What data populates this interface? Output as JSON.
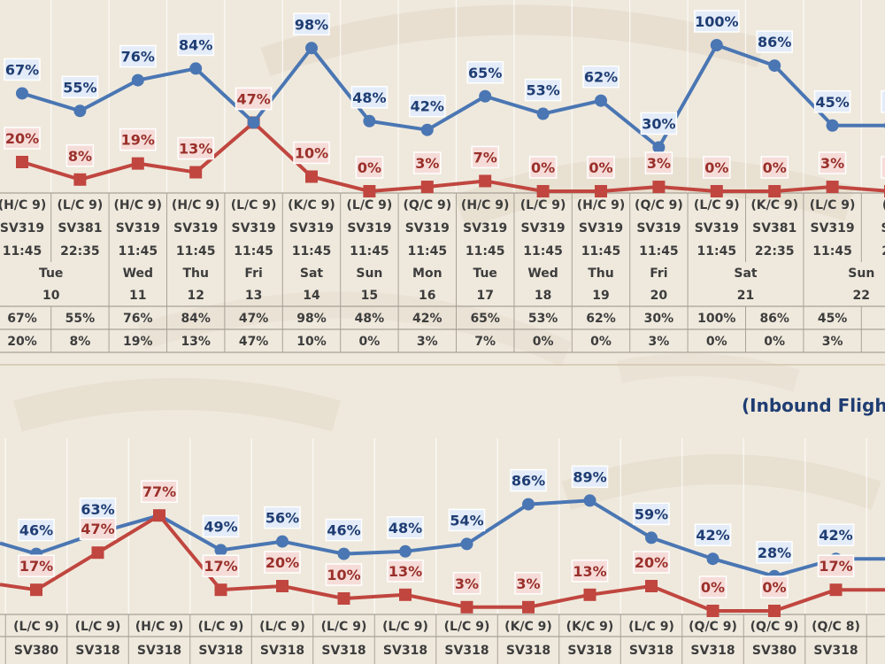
{
  "colors": {
    "blue_series": "#4a76b3",
    "red_series": "#c0463f",
    "blue_label_bg": "#e3ecf8",
    "red_label_bg": "#f6dcd8",
    "table_text": "#3d3d3d",
    "heading_text": "#1f3d73"
  },
  "heading": "(Inbound Flight",
  "chart_data": [
    {
      "type": "line",
      "series": [
        {
          "values": [
            67,
            55,
            76,
            84,
            47,
            98,
            48,
            42,
            65,
            53,
            62,
            30,
            100,
            86,
            45,
            45
          ]
        },
        {
          "values": [
            20,
            8,
            19,
            13,
            47,
            10,
            0,
            3,
            7,
            0,
            0,
            3,
            0,
            0,
            3,
            0
          ]
        }
      ],
      "value_labels": {
        "blue": [
          "67%",
          "55%",
          "76%",
          "84%",
          "47%",
          "98%",
          "48%",
          "42%",
          "65%",
          "53%",
          "62%",
          "30%",
          "100%",
          "86%",
          "45%",
          "4"
        ],
        "red": [
          "20%",
          "8%",
          "19%",
          "13%",
          "47%",
          "10%",
          "0%",
          "3%",
          "7%",
          "0%",
          "0%",
          "3%",
          "0%",
          "0%",
          "3%",
          "0"
        ]
      },
      "table": {
        "classes": [
          "(H/C 9)",
          "(L/C 9)",
          "(H/C 9)",
          "(H/C 9)",
          "(L/C 9)",
          "(K/C 9)",
          "(L/C 9)",
          "(Q/C 9)",
          "(H/C 9)",
          "(L/C 9)",
          "(H/C 9)",
          "(Q/C 9)",
          "(L/C 9)",
          "(K/C 9)",
          "(L/C 9)",
          "(Q"
        ],
        "flights": [
          "SV319",
          "SV381",
          "SV319",
          "SV319",
          "SV319",
          "SV319",
          "SV319",
          "SV319",
          "SV319",
          "SV319",
          "SV319",
          "SV319",
          "SV319",
          "SV381",
          "SV319",
          "SV"
        ],
        "times": [
          "11:45",
          "22:35",
          "11:45",
          "11:45",
          "11:45",
          "11:45",
          "11:45",
          "11:45",
          "11:45",
          "11:45",
          "11:45",
          "11:45",
          "11:45",
          "22:35",
          "11:45",
          "22"
        ],
        "day_groups": [
          {
            "day": "Tue",
            "date": "10",
            "span": 2
          },
          {
            "day": "Wed",
            "date": "11",
            "span": 1
          },
          {
            "day": "Thu",
            "date": "12",
            "span": 1
          },
          {
            "day": "Fri",
            "date": "13",
            "span": 1
          },
          {
            "day": "Sat",
            "date": "14",
            "span": 1
          },
          {
            "day": "Sun",
            "date": "15",
            "span": 1
          },
          {
            "day": "Mon",
            "date": "16",
            "span": 1
          },
          {
            "day": "Tue",
            "date": "17",
            "span": 1
          },
          {
            "day": "Wed",
            "date": "18",
            "span": 1
          },
          {
            "day": "Thu",
            "date": "19",
            "span": 1
          },
          {
            "day": "Fri",
            "date": "20",
            "span": 1
          },
          {
            "day": "Sat",
            "date": "21",
            "span": 2
          },
          {
            "day": "Sun",
            "date": "22",
            "span": 2
          }
        ],
        "row1": [
          "67%",
          "55%",
          "76%",
          "84%",
          "47%",
          "98%",
          "48%",
          "42%",
          "65%",
          "53%",
          "62%",
          "30%",
          "100%",
          "86%",
          "45%",
          "4"
        ],
        "row2": [
          "20%",
          "8%",
          "19%",
          "13%",
          "47%",
          "10%",
          "0%",
          "3%",
          "7%",
          "0%",
          "0%",
          "3%",
          "0%",
          "0%",
          "3%",
          "0"
        ]
      }
    },
    {
      "type": "line",
      "series": [
        {
          "values": [
            46,
            63,
            77,
            49,
            56,
            46,
            48,
            54,
            86,
            89,
            59,
            42,
            28,
            42,
            42
          ]
        },
        {
          "values": [
            17,
            47,
            77,
            17,
            20,
            10,
            13,
            3,
            3,
            13,
            20,
            0,
            0,
            17,
            17
          ]
        }
      ],
      "value_labels": {
        "blue": [
          "46%",
          "63%",
          "",
          "49%",
          "56%",
          "46%",
          "48%",
          "54%",
          "86%",
          "89%",
          "59%",
          "42%",
          "28%",
          "42%",
          "4"
        ],
        "red": [
          "17%",
          "47%",
          "77%",
          "17%",
          "20%",
          "10%",
          "13%",
          "3%",
          "3%",
          "13%",
          "20%",
          "0%",
          "0%",
          "17%",
          "1"
        ]
      },
      "table": {
        "classes": [
          "(L/C 9)",
          "(L/C 9)",
          "(H/C 9)",
          "(L/C 9)",
          "(L/C 9)",
          "(L/C 9)",
          "(L/C 9)",
          "(L/C 9)",
          "(K/C 9)",
          "(K/C 9)",
          "(L/C 9)",
          "(Q/C 9)",
          "(Q/C 9)",
          "(Q/C 8)",
          "("
        ],
        "flights": [
          "SV380",
          "SV318",
          "SV318",
          "SV318",
          "SV318",
          "SV318",
          "SV318",
          "SV318",
          "SV318",
          "SV318",
          "SV318",
          "SV318",
          "SV380",
          "SV318",
          "S"
        ]
      }
    }
  ]
}
